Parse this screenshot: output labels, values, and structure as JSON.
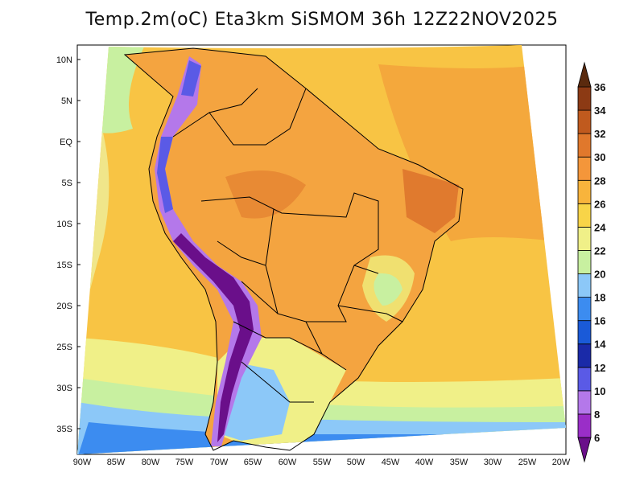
{
  "title": "Temp.2m(oC) Eta3km SiSMOM 36h 12Z22NOV2025",
  "lat_labels": [
    "10N",
    "5N",
    "EQ",
    "5S",
    "10S",
    "15S",
    "20S",
    "25S",
    "30S",
    "35S"
  ],
  "lon_labels": [
    "90W",
    "85W",
    "80W",
    "75W",
    "70W",
    "65W",
    "60W",
    "55W",
    "50W",
    "45W",
    "40W",
    "35W",
    "30W",
    "25W",
    "20W"
  ],
  "colorbar": {
    "labels": [
      "6",
      "8",
      "10",
      "12",
      "14",
      "16",
      "18",
      "20",
      "22",
      "24",
      "26",
      "28",
      "30",
      "32",
      "34",
      "36"
    ],
    "colors": [
      "#6a0f8a",
      "#9a2ec8",
      "#b478ea",
      "#5a5ae6",
      "#1a2aa8",
      "#1a5ad8",
      "#3c8cf0",
      "#8cc8f8",
      "#c8f0a0",
      "#f0f088",
      "#f8d448",
      "#f8b43c",
      "#f4963a",
      "#e0782c",
      "#c05a1e",
      "#8c3a14",
      "#5a2a0e"
    ]
  }
}
